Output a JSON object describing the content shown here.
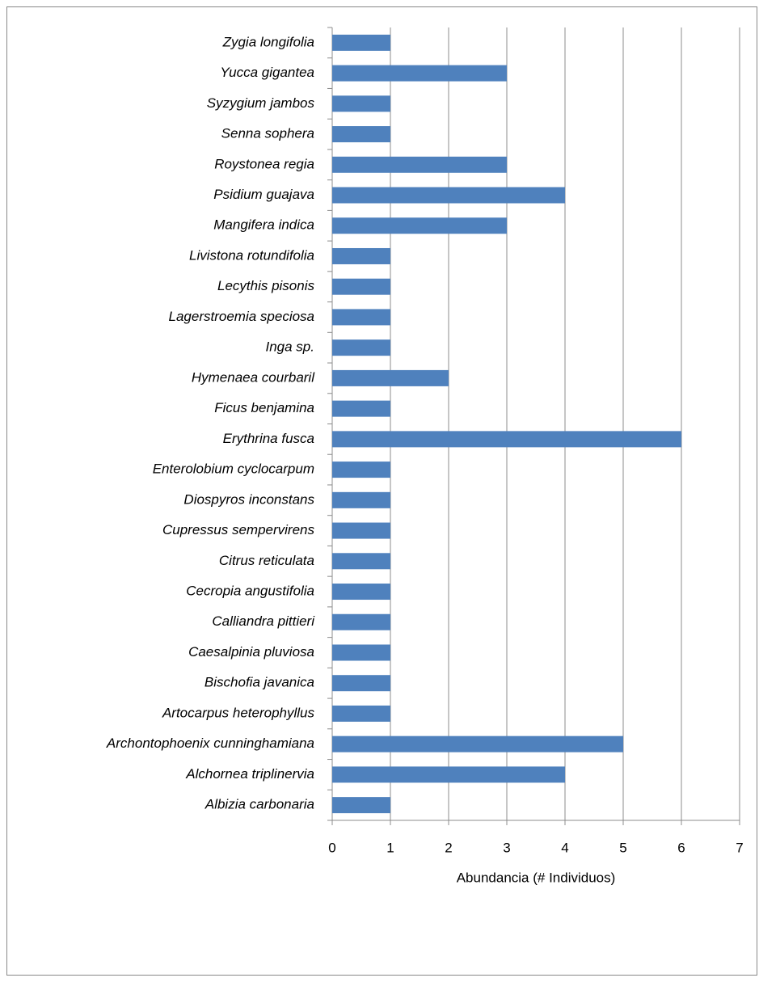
{
  "chart_data": {
    "type": "bar",
    "orientation": "horizontal",
    "x_label": "Abundancia (# Individuos)",
    "categories": [
      "Albizia carbonaria",
      "Alchornea triplinervia",
      "Archontophoenix cunninghamiana",
      "Artocarpus heterophyllus",
      "Bischofia javanica",
      "Caesalpinia pluviosa",
      "Calliandra pittieri",
      "Cecropia angustifolia",
      "Citrus reticulata",
      "Cupressus sempervirens",
      "Diospyros inconstans",
      "Enterolobium cyclocarpum",
      "Erythrina fusca",
      "Ficus benjamina",
      "Hymenaea courbaril",
      "Inga sp.",
      "Lagerstroemia speciosa",
      "Lecythis pisonis",
      "Livistona rotundifolia",
      "Mangifera indica",
      "Psidium guajava",
      "Roystonea regia",
      "Senna sophera",
      "Syzygium jambos",
      "Yucca gigantea",
      "Zygia longifolia"
    ],
    "values": [
      1,
      4,
      5,
      1,
      1,
      1,
      1,
      1,
      1,
      1,
      1,
      1,
      6,
      1,
      2,
      1,
      1,
      1,
      1,
      3,
      4,
      3,
      1,
      1,
      3,
      1
    ],
    "color": "#4f81bd",
    "xlim": [
      0,
      7
    ],
    "xticks": [
      0,
      1,
      2,
      3,
      4,
      5,
      6,
      7
    ],
    "grid": true
  }
}
